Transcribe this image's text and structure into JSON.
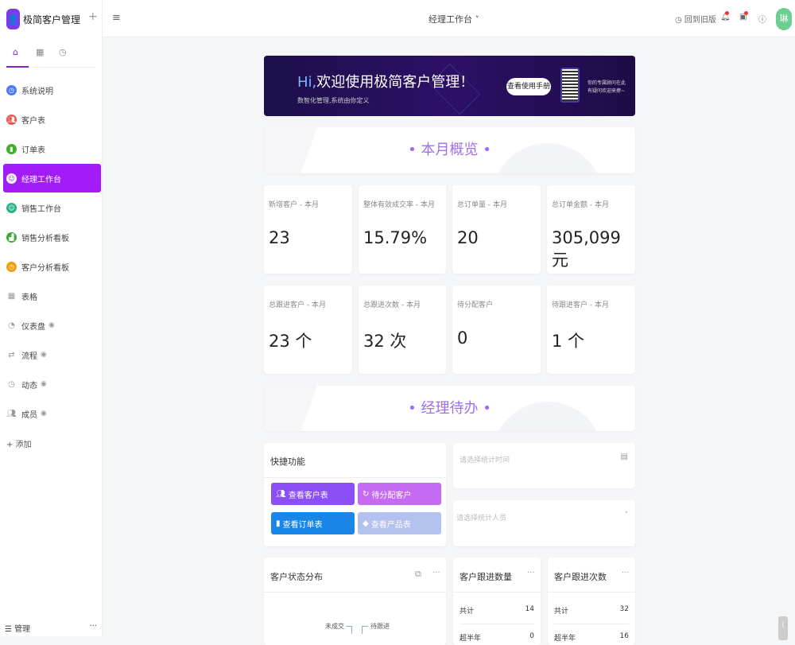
{
  "app": {
    "name": "极简客户管理",
    "logo_icon": "user-avatar-icon",
    "add_label": "+"
  },
  "sidebar": {
    "tab_icons": [
      "home-icon",
      "grid-icon",
      "clock-icon"
    ],
    "items": [
      {
        "label": "系统说明",
        "icon": "clock-icon",
        "color": "#4a7cf7"
      },
      {
        "label": "客户表",
        "icon": "users-icon",
        "color": "#ef5350"
      },
      {
        "label": "订单表",
        "icon": "bag-icon",
        "color": "#43b02a"
      },
      {
        "label": "经理工作台",
        "icon": "face-icon",
        "color": "#a21cfa",
        "active": true
      },
      {
        "label": "销售工作台",
        "icon": "smile-icon",
        "color": "#26b38a"
      },
      {
        "label": "销售分析看板",
        "icon": "chart-icon",
        "color": "#3aa935"
      },
      {
        "label": "客户分析看板",
        "icon": "clock-icon",
        "color": "#f59d0a"
      }
    ],
    "groups": [
      {
        "label": "表格",
        "icon": "grid-icon"
      },
      {
        "label": "仪表盘",
        "icon": "pie-icon",
        "hidden": true
      },
      {
        "label": "流程",
        "icon": "flow-icon",
        "hidden": true
      },
      {
        "label": "动态",
        "icon": "clock-icon",
        "hidden": true
      },
      {
        "label": "成员",
        "icon": "users-icon",
        "hidden": true
      }
    ],
    "add": "+ 添加",
    "manage": "☰ 管理",
    "manage_more": "···"
  },
  "topbar": {
    "menu_icon": "≡",
    "title": "经理工作台 ˅",
    "back_old": "回到旧版",
    "avatar": "琳"
  },
  "banner": {
    "hi": "Hi,",
    "headline": "欢迎使用极简客户管理！",
    "sub": "数智化管理,系统由你定义",
    "button": "查看使用手册",
    "qr_text1": "你的专属顾问在此",
    "qr_text2": "有疑问欢迎来撩~"
  },
  "sections": {
    "overview": "•  本月概览  •",
    "todo": "•  经理待办  •"
  },
  "stats": [
    {
      "label": "新增客户 - 本月",
      "value": "23"
    },
    {
      "label": "整体有效成交率 - 本月",
      "value": "15.79%"
    },
    {
      "label": "总订单量 - 本月",
      "value": "20"
    },
    {
      "label": "总订单金额 - 本月",
      "value": "305,099 元"
    },
    {
      "label": "总跟进客户 - 本月",
      "value": "23 个"
    },
    {
      "label": "总跟进次数 - 本月",
      "value": "32 次"
    },
    {
      "label": "待分配客户",
      "value": "0"
    },
    {
      "label": "待跟进客户 - 本月",
      "value": "1 个"
    }
  ],
  "quick": {
    "title": "快捷功能",
    "buttons": [
      {
        "label": "查看客户表",
        "icon": "users-icon",
        "color": "#8c4ff7"
      },
      {
        "label": "待分配客户",
        "icon": "refresh-icon",
        "color": "#c56af2"
      },
      {
        "label": "查看订单表",
        "icon": "bag-icon",
        "color": "#1a86e8"
      },
      {
        "label": "查看产品表",
        "icon": "tag-icon",
        "color": "#b3c1ee"
      }
    ]
  },
  "filters": {
    "time_placeholder": "请选择统计时间",
    "person_placeholder": "请选择统计人员"
  },
  "status_chart": {
    "title": "客户状态分布",
    "labels": [
      "未成交",
      "待跟进"
    ]
  },
  "follow_count": {
    "title": "客户跟进数量",
    "rows": [
      {
        "label": "共计",
        "value": "14"
      },
      {
        "label": "超半年",
        "value": "0"
      }
    ]
  },
  "follow_times": {
    "title": "客户跟进次数",
    "rows": [
      {
        "label": "共计",
        "value": "32"
      },
      {
        "label": "超半年",
        "value": "16"
      }
    ]
  }
}
